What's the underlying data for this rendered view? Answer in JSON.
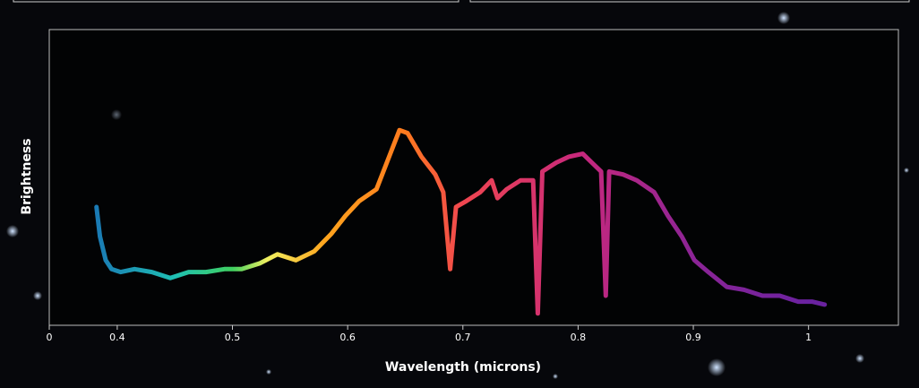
{
  "chart_data": {
    "type": "line",
    "xlabel": "Wavelength (microns)",
    "ylabel": "Brightness",
    "x": [
      0.382,
      0.385,
      0.39,
      0.395,
      0.403,
      0.415,
      0.43,
      0.446,
      0.462,
      0.477,
      0.493,
      0.508,
      0.524,
      0.539,
      0.555,
      0.571,
      0.586,
      0.598,
      0.61,
      0.625,
      0.637,
      0.645,
      0.652,
      0.664,
      0.676,
      0.683,
      0.689,
      0.694,
      0.703,
      0.715,
      0.725,
      0.73,
      0.738,
      0.75,
      0.761,
      0.765,
      0.769,
      0.781,
      0.792,
      0.804,
      0.812,
      0.82,
      0.824,
      0.827,
      0.839,
      0.851,
      0.866,
      0.878,
      0.89,
      0.901,
      0.913,
      0.929,
      0.944,
      0.96,
      0.975,
      0.991,
      1.003,
      1.014
    ],
    "values": [
      0.4,
      0.3,
      0.22,
      0.19,
      0.18,
      0.19,
      0.18,
      0.16,
      0.18,
      0.18,
      0.19,
      0.19,
      0.21,
      0.24,
      0.22,
      0.25,
      0.31,
      0.37,
      0.42,
      0.46,
      0.58,
      0.66,
      0.65,
      0.57,
      0.51,
      0.45,
      0.19,
      0.4,
      0.42,
      0.45,
      0.49,
      0.43,
      0.46,
      0.49,
      0.49,
      0.04,
      0.52,
      0.55,
      0.57,
      0.58,
      0.55,
      0.52,
      0.1,
      0.52,
      0.51,
      0.49,
      0.45,
      0.37,
      0.3,
      0.22,
      0.18,
      0.13,
      0.12,
      0.1,
      0.1,
      0.08,
      0.08,
      0.07
    ],
    "color_stops": [
      {
        "x": 0.38,
        "color": "#1a78b4"
      },
      {
        "x": 0.45,
        "color": "#1fc0b4"
      },
      {
        "x": 0.5,
        "color": "#40d060"
      },
      {
        "x": 0.53,
        "color": "#f0f060"
      },
      {
        "x": 0.58,
        "color": "#ffa51e"
      },
      {
        "x": 0.65,
        "color": "#ff7a1e"
      },
      {
        "x": 0.7,
        "color": "#f04650"
      },
      {
        "x": 0.8,
        "color": "#c8287c"
      },
      {
        "x": 0.9,
        "color": "#8c2496"
      },
      {
        "x": 1.0,
        "color": "#6a22a0"
      }
    ],
    "xlim": [
      0.341,
      1.078
    ],
    "ylim": [
      0,
      1
    ],
    "xticks": [
      {
        "value": 0.341,
        "label": "0"
      },
      0.4,
      0.5,
      0.6,
      0.7,
      0.8,
      0.9,
      1
    ]
  }
}
